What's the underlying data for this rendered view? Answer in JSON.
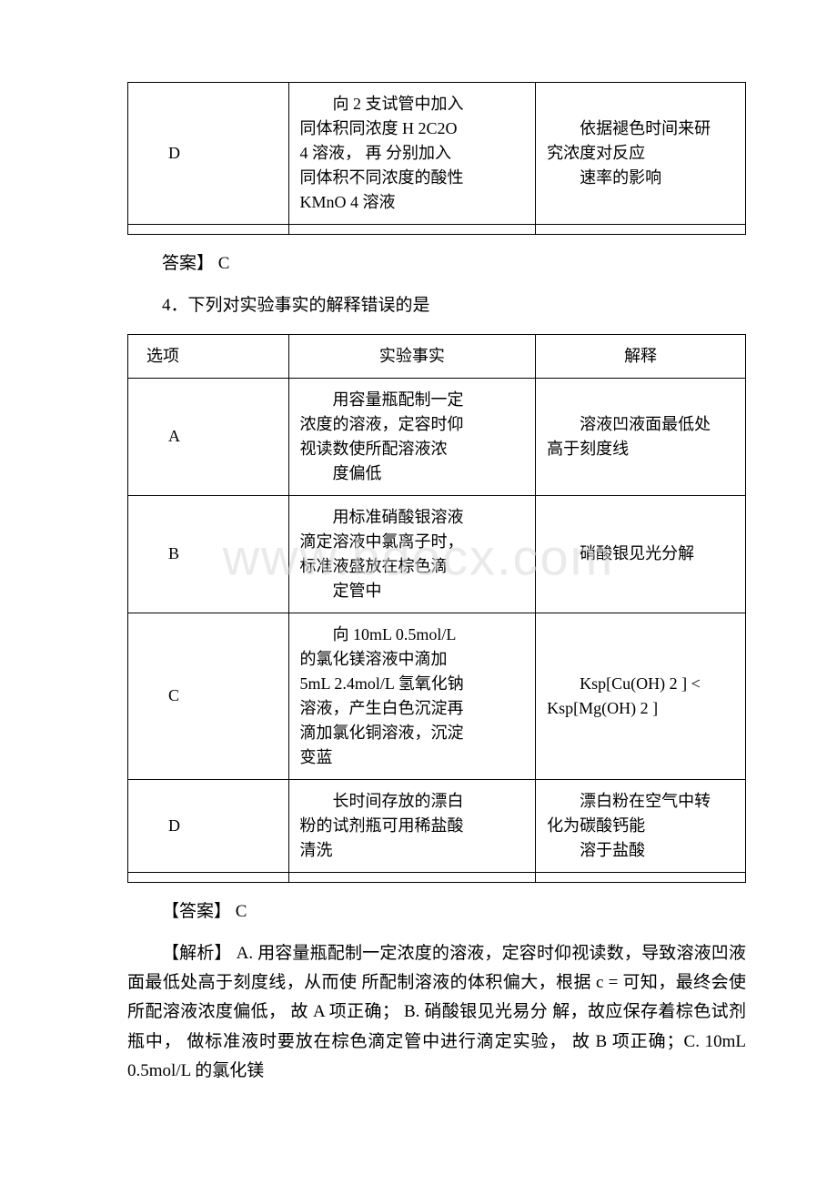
{
  "watermark": "www.bdocx.com",
  "table1": {
    "rows": [
      {
        "option": "D",
        "fact_lines": [
          "　　向 2 支试管中加入",
          "同体积同浓度 H 2C2O",
          "4 溶液， 再 分别加入",
          "同体积不同浓度的酸性",
          "KMnO 4 溶液"
        ],
        "explain_lines": [
          "　　依据褪色时间来研",
          "究浓度对反应",
          "　　速率的影响"
        ]
      }
    ]
  },
  "answer1": "答案】 C",
  "question2": "4．下列对实验事实的解释错误的是",
  "table2": {
    "header": {
      "c1": "选项",
      "c2": "实验事实",
      "c3": "解释"
    },
    "rows": [
      {
        "option": "A",
        "fact_lines": [
          "　　用容量瓶配制一定",
          "浓度的溶液，定容时仰",
          "视读数使所配溶液浓",
          "",
          "　　度偏低"
        ],
        "explain_lines": [
          "　　溶液凹液面最低处",
          "高于刻度线"
        ]
      },
      {
        "option": "B",
        "fact_lines": [
          "　　用标准硝酸银溶液",
          "滴定溶液中氯离子时，",
          "标准液盛放在棕色滴",
          "",
          "　　定管中"
        ],
        "explain_lines": [
          "　　硝酸银见光分解"
        ]
      },
      {
        "option": "C",
        "fact_lines": [
          "　　向 10mL 0.5mol/L",
          "的氯化镁溶液中滴加",
          "5mL 2.4mol/L 氢氧化钠",
          "溶液，产生白色沉淀再",
          "滴加氯化铜溶液，沉淀",
          "变蓝"
        ],
        "explain_lines": [
          "　　Ksp[Cu(OH) 2 ] <",
          "Ksp[Mg(OH) 2 ]"
        ]
      },
      {
        "option": "D",
        "fact_lines": [
          "　　长时间存放的漂白",
          "粉的试剂瓶可用稀盐酸",
          "清洗"
        ],
        "explain_lines": [
          "　　漂白粉在空气中转",
          "化为碳酸钙能",
          "　　溶于盐酸"
        ]
      }
    ]
  },
  "answer2": "【答案】 C",
  "explanation": "【解析】 A. 用容量瓶配制一定浓度的溶液，定容时仰视读数，导致溶液凹液面最低处高于刻度线，从而使 所配制溶液的体积偏大，根据 c = 可知，最终会使所配溶液浓度偏低， 故 A 项正确； B. 硝酸银见光易分 解，故应保存着棕色试剂瓶中， 做标准液时要放在棕色滴定管中进行滴定实验， 故 B 项正确；C. 10mL 0.5mol/L 的氯化镁"
}
